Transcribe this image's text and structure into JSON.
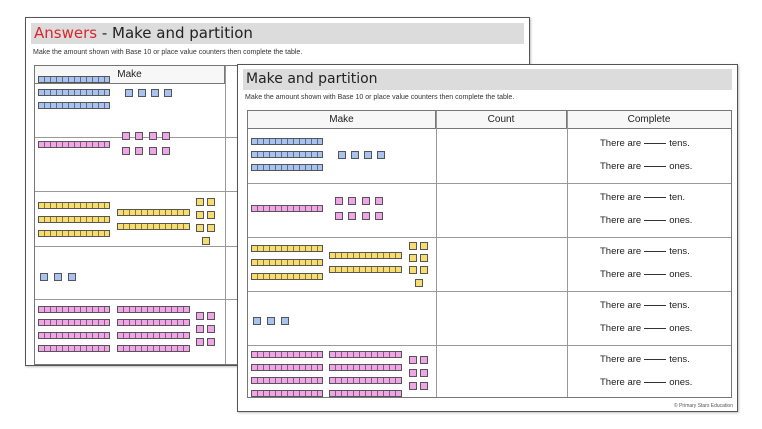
{
  "back": {
    "answers_label": "Answers",
    "title_rest": " - Make and partition",
    "instructions": "Make the amount shown with Base 10 or place value counters then complete the table.",
    "header_make": "Make"
  },
  "front": {
    "title": "Make and partition",
    "instructions": "Make the amount shown with Base 10 or place value counters then complete the table.",
    "headers": {
      "make": "Make",
      "count": "Count",
      "complete": "Complete"
    },
    "rows": [
      {
        "tens_pre": "There are",
        "tens_post": "tens.",
        "ones_pre": "There are",
        "ones_post": "ones."
      },
      {
        "tens_pre": "There are",
        "tens_post": "ten.",
        "ones_pre": "There are",
        "ones_post": "ones."
      },
      {
        "tens_pre": "There are",
        "tens_post": "tens.",
        "ones_pre": "There are",
        "ones_post": "ones."
      },
      {
        "tens_pre": "There are",
        "tens_post": "tens.",
        "ones_pre": "There are",
        "ones_post": "ones."
      },
      {
        "tens_pre": "There are",
        "tens_post": "tens.",
        "ones_pre": "There are",
        "ones_post": "ones."
      }
    ],
    "copyright": "© Primary Stars Education"
  },
  "colors": {
    "blue": "#a9c3f0",
    "pink": "#f0a6e6",
    "yellow": "#f7dd6f",
    "answers_red": "#d8262b"
  }
}
